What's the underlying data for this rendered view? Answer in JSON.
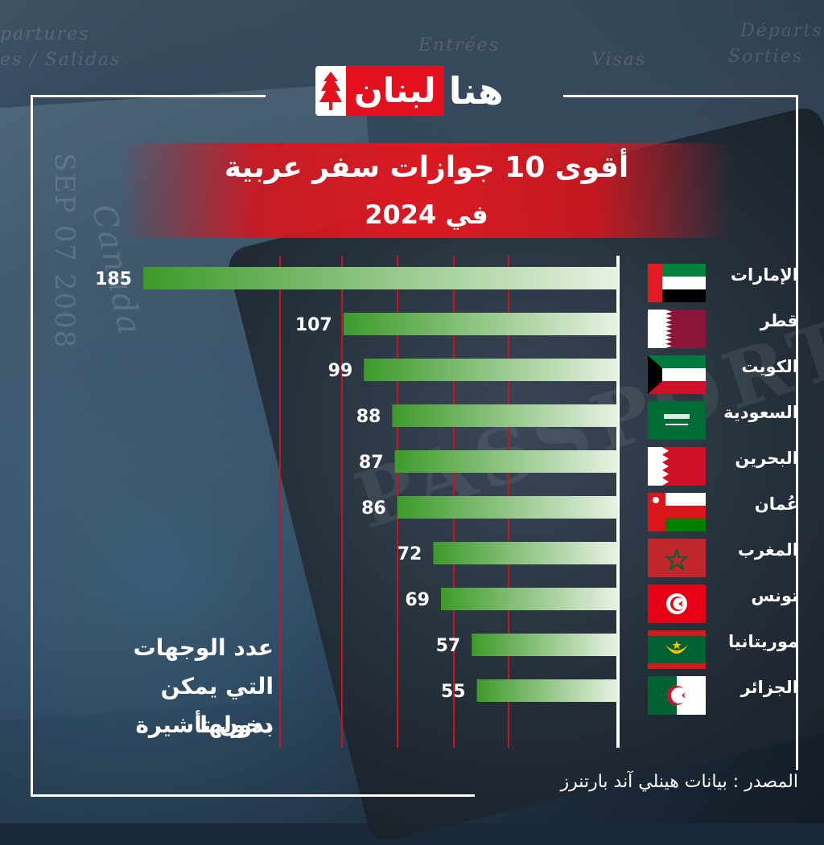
{
  "brand": {
    "logo_red_text": "لبنان",
    "logo_white_text": "هنا",
    "colors": {
      "brand_red": "#e3101e",
      "bar_green": "#3d9a2a",
      "bar_light": "#e7f2e3",
      "grid_red": "#c8141e"
    }
  },
  "title": {
    "line1": "أقوى 10 جوازات سفر عربية",
    "line2": "في 2024"
  },
  "side_note": {
    "line1": "عدد الوجهات",
    "line2": "التي يمكن دخولها",
    "line3": "بدون تأشيرة"
  },
  "source": {
    "label": "المصدر :",
    "value": "بيانات هينلي آند بارتنرز"
  },
  "background_text": {
    "t1": "partures",
    "t2": "es / Salidas",
    "t3": "Entrées",
    "t4": "Visas",
    "t5": "Départs",
    "t6": "Sorties",
    "t7": "Canada",
    "t8": "SEP 07 2008",
    "t9": "PASSPORT"
  },
  "chart_data": {
    "type": "bar",
    "orientation": "horizontal",
    "categories": [
      "الإمارات",
      "قطر",
      "الكويت",
      "السعودية",
      "البحرين",
      "عُمان",
      "المغرب",
      "تونس",
      "موريتانيا",
      "الجزائر"
    ],
    "values": [
      185,
      107,
      99,
      88,
      87,
      86,
      72,
      69,
      57,
      55
    ],
    "flags": [
      "uae-flag-icon",
      "qatar-flag-icon",
      "kuwait-flag-icon",
      "saudi-flag-icon",
      "bahrain-flag-icon",
      "oman-flag-icon",
      "morocco-flag-icon",
      "tunisia-flag-icon",
      "mauritania-flag-icon",
      "algeria-flag-icon"
    ],
    "grid": true,
    "bar_direction": "right-to-left",
    "value_labels": true
  }
}
